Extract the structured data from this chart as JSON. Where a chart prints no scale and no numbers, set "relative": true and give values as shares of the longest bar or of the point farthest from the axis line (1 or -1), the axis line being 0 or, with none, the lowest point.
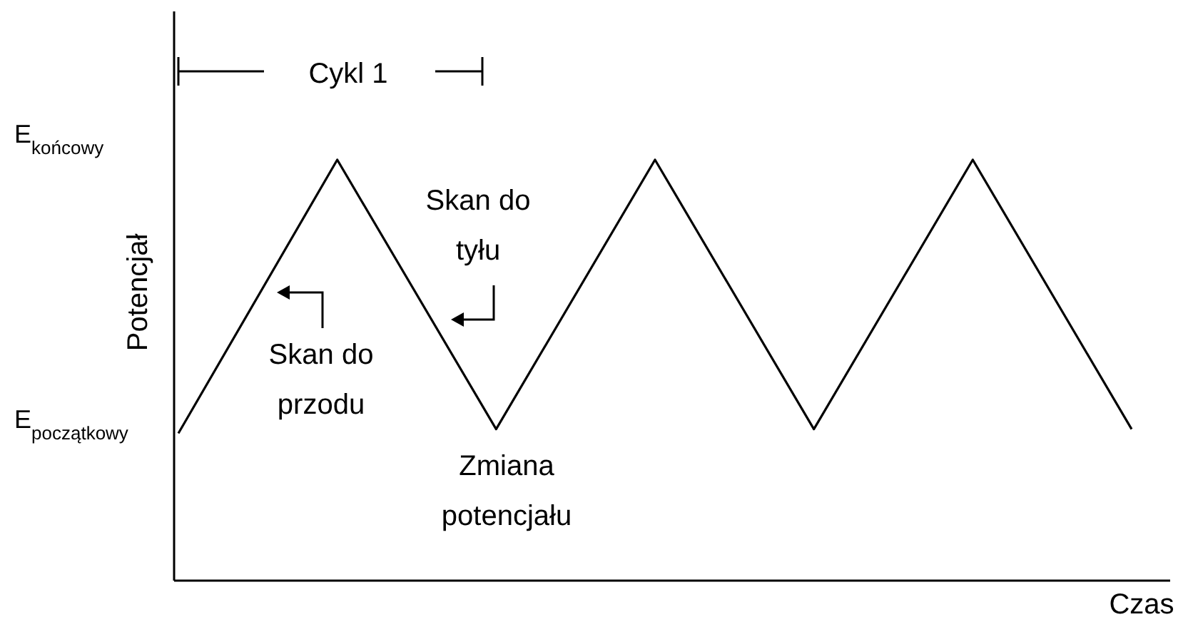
{
  "chart_data": {
    "type": "line",
    "relative": true,
    "xlabel": "Czas",
    "ylabel": "Potencjał",
    "categories": [
      null,
      null,
      null,
      null,
      null,
      null,
      null
    ],
    "series": [
      {
        "color": "#000000",
        "values": [
          0.35,
          1,
          0.36,
          1,
          0.36,
          1,
          0.36
        ]
      }
    ],
    "marker": "none",
    "line_style": "solid",
    "annotations": [
      "E$_{końcowy}$",
      "E$_{początkowy}$",
      "Cykl 1",
      "Skan do przodu",
      "Skan do tyłu",
      "Zmiana potencjału"
    ]
  }
}
